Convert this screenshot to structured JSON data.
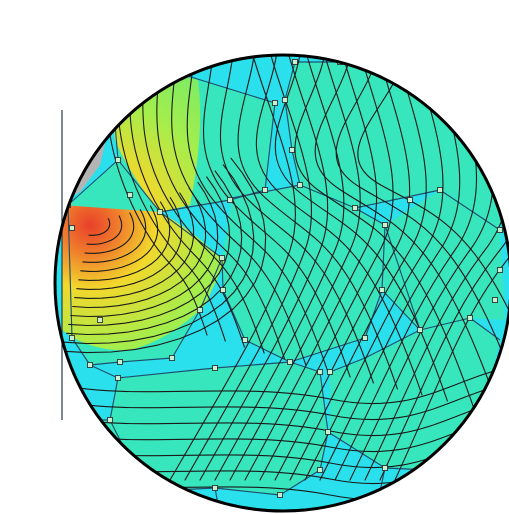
{
  "diagram": {
    "colors": {
      "background": "#ffffff",
      "boundary_phase": "#29e0ec",
      "grain_fill": "#39e6b4",
      "hot_core": "#e8402a",
      "hot_mid": "#f2d82c",
      "hot_outer": "#a4ee4c",
      "notch": "#b4b4b4",
      "contour_line": "#1a1a1a",
      "grain_edge": "#1f4f70",
      "rim": "#000000"
    },
    "element_types": [
      "circular-domain",
      "notch",
      "grain-boundary-network",
      "grain-nodes",
      "iso-contours",
      "field-colormap"
    ]
  }
}
